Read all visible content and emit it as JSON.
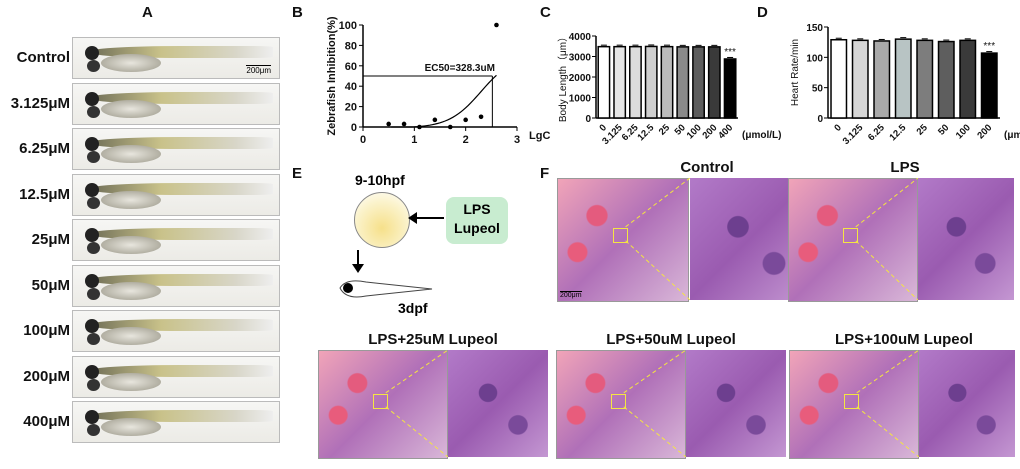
{
  "panel_labels": {
    "a": "A",
    "b": "B",
    "c": "C",
    "d": "D",
    "e": "E",
    "f": "F"
  },
  "panel_a": {
    "concentrations": [
      "Control",
      "3.125μM",
      "6.25μM",
      "12.5μM",
      "25μM",
      "50μM",
      "100μM",
      "200μM",
      "400μM"
    ],
    "scale_bar": "200μm"
  },
  "panel_e": {
    "stage": "9-10hpf",
    "treatment_line1": "LPS",
    "treatment_line2": "Lupeol",
    "endpoint": "3dpf",
    "treatment_box_color": "#c8ecd0"
  },
  "panel_f": {
    "titles": [
      "Control",
      "LPS",
      "LPS+25uM Lupeol",
      "LPS+50uM Lupeol",
      "LPS+100uM Lupeol"
    ],
    "scale_bar": "200μm"
  },
  "chart_data": [
    {
      "id": "B",
      "type": "scatter",
      "ylabel": "Zebrafish Inhibition(%)",
      "xlabel": "LgC",
      "xlim": [
        0,
        3
      ],
      "ylim": [
        0,
        100
      ],
      "xticks": [
        0,
        1,
        2,
        3
      ],
      "yticks": [
        0,
        20,
        40,
        60,
        80,
        100
      ],
      "points": [
        [
          0.5,
          3
        ],
        [
          0.8,
          3
        ],
        [
          1.1,
          0
        ],
        [
          1.4,
          7
        ],
        [
          1.7,
          0
        ],
        [
          2.0,
          7
        ],
        [
          2.3,
          10
        ],
        [
          2.6,
          100
        ]
      ],
      "fit_curve": "sigmoid",
      "annotation": "EC50=328.3uM",
      "ec50_lgc": 2.52,
      "ec50_y": 50
    },
    {
      "id": "C",
      "type": "bar",
      "ylabel": "Body Length（μm）",
      "xlabel": "(μmol/L)",
      "ylim": [
        0,
        4000
      ],
      "yticks": [
        0,
        1000,
        2000,
        3000,
        4000
      ],
      "categories": [
        "0",
        "3.125",
        "6.25",
        "12.5",
        "25",
        "50",
        "100",
        "200",
        "400"
      ],
      "values": [
        3480,
        3480,
        3480,
        3490,
        3480,
        3470,
        3470,
        3470,
        2880
      ],
      "colors": [
        "#ffffff",
        "#e6e6e6",
        "#dcdcdc",
        "#cfcfcf",
        "#bcbcbc",
        "#8a8a8a",
        "#5c5c5c",
        "#3a3a3a",
        "#000000"
      ],
      "significance": {
        "400": "***"
      }
    },
    {
      "id": "D",
      "type": "bar",
      "ylabel": "Heart Rate/min",
      "xlabel": "(μmol/L)",
      "ylim": [
        0,
        150
      ],
      "yticks": [
        0,
        50,
        100,
        150
      ],
      "categories": [
        "0",
        "3.125",
        "6.25",
        "12.5",
        "25",
        "50",
        "100",
        "200"
      ],
      "values": [
        129,
        128,
        127,
        130,
        128,
        126,
        128,
        107
      ],
      "colors": [
        "#ffffff",
        "#d6d6d6",
        "#a9a9a9",
        "#b8c4c4",
        "#7d7d7d",
        "#5e5e5e",
        "#3a3a3a",
        "#000000"
      ],
      "significance": {
        "200": "***"
      }
    }
  ]
}
